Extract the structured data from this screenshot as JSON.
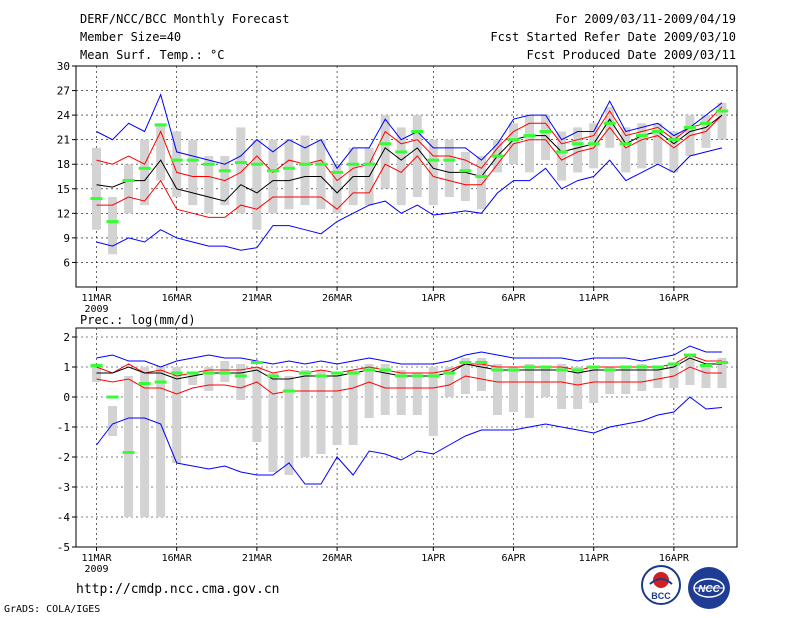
{
  "header": {
    "title": "DERF/NCC/BCC Monthly Forecast",
    "member_size": "Member Size=40",
    "variable": "Mean Surf. Temp.: °C",
    "period": "For 2009/03/11-2009/04/19",
    "started": "Fcst Started Refer Date 2009/03/10",
    "produced": "Fcst Produced Date 2009/03/11"
  },
  "footer": {
    "url": "http://cmdp.ncc.cma.gov.cn",
    "grads": "GrADS: COLA/IGES",
    "logo_left": "BCC",
    "logo_right": "NCC"
  },
  "colors": {
    "max_min": "#0000ff",
    "spread": "#ff0000",
    "mean": "#000000",
    "obs": "#33ff33",
    "box": "#d3d3d3",
    "grid": "#000000"
  },
  "chart_data": [
    {
      "type": "line",
      "title": "Mean Surf. Temp.: °C",
      "xlabel": "",
      "ylabel": "",
      "x": [
        "11MAR",
        "12MAR",
        "13MAR",
        "14MAR",
        "15MAR",
        "16MAR",
        "17MAR",
        "18MAR",
        "19MAR",
        "20MAR",
        "21MAR",
        "22MAR",
        "23MAR",
        "24MAR",
        "25MAR",
        "26MAR",
        "27MAR",
        "28MAR",
        "29MAR",
        "30MAR",
        "31MAR",
        "1APR",
        "2APR",
        "3APR",
        "4APR",
        "5APR",
        "6APR",
        "7APR",
        "8APR",
        "9APR",
        "10APR",
        "11APR",
        "12APR",
        "13APR",
        "14APR",
        "15APR",
        "16APR",
        "17APR",
        "18APR",
        "19APR"
      ],
      "xticks": [
        "11MAR",
        "16MAR",
        "21MAR",
        "26MAR",
        "1APR",
        "6APR",
        "11APR",
        "16APR"
      ],
      "xtick_index": [
        0,
        5,
        10,
        15,
        21,
        26,
        31,
        36
      ],
      "year_label": "2009",
      "ylim": [
        3,
        30
      ],
      "yticks": [
        6,
        9,
        12,
        15,
        18,
        21,
        24,
        27,
        30
      ],
      "series": [
        {
          "name": "max",
          "values": [
            22,
            21,
            23,
            22,
            26.5,
            19.5,
            19,
            18.5,
            18,
            19,
            21,
            19.5,
            21,
            20,
            21,
            17.5,
            20,
            20,
            23.5,
            21,
            22,
            20,
            20,
            20,
            18.5,
            20.5,
            23.5,
            24,
            24,
            21,
            22,
            22,
            25.7,
            22,
            22.5,
            23,
            21.5,
            22.5,
            24,
            25.5
          ]
        },
        {
          "name": "upper",
          "values": [
            18.5,
            18,
            19,
            18,
            22,
            17,
            16.5,
            16.5,
            16,
            17,
            19,
            17,
            18.5,
            18,
            18.5,
            16,
            17.5,
            18,
            22,
            20.5,
            21,
            19,
            19,
            18.5,
            17.5,
            20,
            22,
            23,
            23,
            20.5,
            21,
            21.5,
            24.5,
            21.5,
            22,
            22.5,
            21,
            22.5,
            23,
            25
          ]
        },
        {
          "name": "mean",
          "values": [
            15.5,
            15.2,
            16,
            16,
            18.5,
            15,
            14.5,
            14,
            13.5,
            15.5,
            14.5,
            16,
            16,
            16.5,
            16.5,
            14.5,
            16.5,
            16.5,
            20,
            18.5,
            20,
            17.5,
            17,
            17,
            16.5,
            19,
            21,
            21.5,
            21.5,
            19.5,
            20,
            20.5,
            23.5,
            20.5,
            21.5,
            22,
            20.5,
            22,
            22.5,
            24
          ]
        },
        {
          "name": "lower",
          "values": [
            13,
            13,
            14,
            13.5,
            16,
            12.5,
            12,
            11.5,
            11.5,
            13,
            12.5,
            14,
            14,
            14,
            14,
            12.5,
            14.5,
            14.5,
            18,
            17,
            19,
            16.5,
            16,
            15.5,
            15.5,
            18,
            20.5,
            21,
            21,
            18.5,
            19.5,
            20,
            22.5,
            20,
            21,
            21.5,
            20,
            21.5,
            22,
            24
          ]
        },
        {
          "name": "min",
          "values": [
            8.5,
            8,
            9,
            8.5,
            10,
            9,
            8.5,
            8,
            8,
            7.5,
            7.8,
            10.5,
            10.5,
            10,
            9.5,
            11,
            12,
            13,
            13.5,
            12,
            13,
            11.8,
            12,
            12.3,
            12,
            14.5,
            16,
            16,
            17.5,
            15,
            16,
            16.5,
            18.5,
            16,
            17,
            18,
            17,
            19,
            19.5,
            20
          ]
        },
        {
          "name": "obs",
          "values": [
            13.8,
            11,
            16,
            17.5,
            22.8,
            18.5,
            18.5,
            18,
            17.2,
            18.2,
            18,
            17.2,
            17.5,
            18,
            18,
            17,
            18,
            18,
            20.5,
            19.5,
            22,
            18.5,
            18.5,
            17.2,
            16.5,
            19,
            21,
            21.5,
            22,
            19.5,
            20.5,
            20.5,
            23,
            20.5,
            21.5,
            22,
            21,
            22.5,
            23,
            24.5
          ]
        },
        {
          "name": "box_high",
          "values": [
            20,
            14,
            18,
            21,
            23,
            22,
            21,
            19,
            19,
            22.5,
            21,
            21,
            21,
            21.5,
            21,
            18,
            20,
            20,
            24,
            22.5,
            24,
            21,
            21,
            19.5,
            19,
            21,
            23,
            24,
            24,
            22,
            22.5,
            23,
            25,
            22.5,
            23,
            23,
            22,
            24,
            24,
            25.5
          ]
        },
        {
          "name": "box_low",
          "values": [
            10,
            7,
            12,
            13,
            16,
            14,
            13,
            12,
            13,
            12,
            10,
            12,
            12.5,
            13,
            12.5,
            12,
            13,
            13,
            15,
            13,
            14,
            13,
            14,
            13.5,
            12.5,
            17,
            18,
            17,
            18.5,
            16,
            17,
            17.5,
            20,
            17,
            17.5,
            18,
            17,
            19,
            20,
            21
          ]
        }
      ]
    },
    {
      "type": "line",
      "title": "Prec.: log(mm/d)",
      "xlabel": "",
      "ylabel": "",
      "x": [
        "11MAR",
        "12MAR",
        "13MAR",
        "14MAR",
        "15MAR",
        "16MAR",
        "17MAR",
        "18MAR",
        "19MAR",
        "20MAR",
        "21MAR",
        "22MAR",
        "23MAR",
        "24MAR",
        "25MAR",
        "26MAR",
        "27MAR",
        "28MAR",
        "29MAR",
        "30MAR",
        "31MAR",
        "1APR",
        "2APR",
        "3APR",
        "4APR",
        "5APR",
        "6APR",
        "7APR",
        "8APR",
        "9APR",
        "10APR",
        "11APR",
        "12APR",
        "13APR",
        "14APR",
        "15APR",
        "16APR",
        "17APR",
        "18APR",
        "19APR"
      ],
      "xticks": [
        "11MAR",
        "16MAR",
        "21MAR",
        "26MAR",
        "1APR",
        "6APR",
        "11APR",
        "16APR"
      ],
      "xtick_index": [
        0,
        5,
        10,
        15,
        21,
        26,
        31,
        36
      ],
      "year_label": "2009",
      "ylim": [
        -5,
        2.3
      ],
      "yticks": [
        -5,
        -4,
        -3,
        -2,
        -1,
        0,
        1,
        2
      ],
      "series": [
        {
          "name": "max",
          "values": [
            1.3,
            1.4,
            1.2,
            1.2,
            1.0,
            1.2,
            1.3,
            1.4,
            1.3,
            1.3,
            1.2,
            1.1,
            1.2,
            1.1,
            1.2,
            1.1,
            1.2,
            1.3,
            1.2,
            1.1,
            1.1,
            1.1,
            1.2,
            1.4,
            1.5,
            1.4,
            1.3,
            1.3,
            1.3,
            1.3,
            1.2,
            1.3,
            1.3,
            1.3,
            1.2,
            1.3,
            1.4,
            1.7,
            1.5,
            1.5
          ]
        },
        {
          "name": "upper",
          "values": [
            1.0,
            0.8,
            1.1,
            0.8,
            0.9,
            0.7,
            0.8,
            0.9,
            0.9,
            0.9,
            1.0,
            0.8,
            0.9,
            0.8,
            0.9,
            0.8,
            0.9,
            1.0,
            0.9,
            0.8,
            0.8,
            0.8,
            0.9,
            1.1,
            1.1,
            1.0,
            1.0,
            1.0,
            1.0,
            1.0,
            0.9,
            1.0,
            1.0,
            1.0,
            1.0,
            1.0,
            1.1,
            1.4,
            1.2,
            1.2
          ]
        },
        {
          "name": "mean",
          "values": [
            0.8,
            0.8,
            1.0,
            0.8,
            0.8,
            0.6,
            0.7,
            0.8,
            0.8,
            0.8,
            0.9,
            0.6,
            0.6,
            0.7,
            0.7,
            0.7,
            0.8,
            0.9,
            0.8,
            0.7,
            0.7,
            0.7,
            0.8,
            1.1,
            1.0,
            0.9,
            0.9,
            0.9,
            0.9,
            0.9,
            0.8,
            0.9,
            0.9,
            0.9,
            0.9,
            0.9,
            1.0,
            1.3,
            1.1,
            1.1
          ]
        },
        {
          "name": "lower",
          "values": [
            0.6,
            0.5,
            0.6,
            0.3,
            0.3,
            0.1,
            0.3,
            0.4,
            0.4,
            0.3,
            0.5,
            0.1,
            0.2,
            0.2,
            0.2,
            0.2,
            0.3,
            0.5,
            0.3,
            0.3,
            0.3,
            0.3,
            0.4,
            0.7,
            0.6,
            0.5,
            0.5,
            0.5,
            0.5,
            0.5,
            0.4,
            0.5,
            0.5,
            0.5,
            0.5,
            0.6,
            0.7,
            1.0,
            0.8,
            0.8
          ]
        },
        {
          "name": "min",
          "values": [
            -1.6,
            -0.9,
            -0.7,
            -0.7,
            -0.9,
            -2.2,
            -2.3,
            -2.4,
            -2.3,
            -2.5,
            -2.6,
            -2.6,
            -2.2,
            -2.9,
            -2.9,
            -2.0,
            -2.6,
            -1.8,
            -1.9,
            -2.1,
            -1.8,
            -1.9,
            -1.6,
            -1.3,
            -1.1,
            -1.1,
            -1.1,
            -1.0,
            -0.9,
            -1.0,
            -1.1,
            -1.2,
            -1.0,
            -0.9,
            -0.8,
            -0.6,
            -0.5,
            0.0,
            -0.4,
            -0.35
          ]
        },
        {
          "name": "obs",
          "values": [
            1.05,
            0.0,
            -1.85,
            0.45,
            0.5,
            0.8,
            0.8,
            0.8,
            0.8,
            0.7,
            1.15,
            0.7,
            0.2,
            0.8,
            0.7,
            0.8,
            0.8,
            0.9,
            0.9,
            0.7,
            0.7,
            0.7,
            0.8,
            1.15,
            1.15,
            0.9,
            0.9,
            1.0,
            1.0,
            0.9,
            0.9,
            1.0,
            0.9,
            1.0,
            1.0,
            1.0,
            1.1,
            1.4,
            1.05,
            1.15
          ]
        },
        {
          "name": "box_high",
          "values": [
            1.1,
            -0.3,
            0.7,
            1.0,
            1.0,
            1.0,
            0.8,
            1.0,
            1.2,
            1.1,
            1.0,
            0.8,
            0.7,
            0.9,
            0.9,
            0.8,
            0.9,
            1.1,
            1.1,
            0.9,
            0.8,
            1.0,
            1.0,
            1.3,
            1.3,
            1.1,
            1.0,
            1.1,
            1.0,
            1.1,
            1.0,
            1.0,
            1.0,
            1.0,
            1.1,
            1.0,
            1.1,
            1.4,
            1.1,
            1.3
          ]
        },
        {
          "name": "box_low",
          "values": [
            0.5,
            -1.3,
            -4,
            -4,
            -4,
            -2.2,
            0.4,
            0.2,
            0.5,
            -0.1,
            -1.5,
            -2.5,
            -2.6,
            -2.0,
            -1.9,
            -1.6,
            -1.6,
            -0.7,
            -0.6,
            -0.6,
            -0.6,
            -1.3,
            0.0,
            0.1,
            0.2,
            -0.6,
            -0.5,
            -0.7,
            0.0,
            -0.4,
            -0.4,
            -0.2,
            0.1,
            0.1,
            0.2,
            0.3,
            0.3,
            0.4,
            0.3,
            0.3
          ]
        }
      ]
    }
  ]
}
